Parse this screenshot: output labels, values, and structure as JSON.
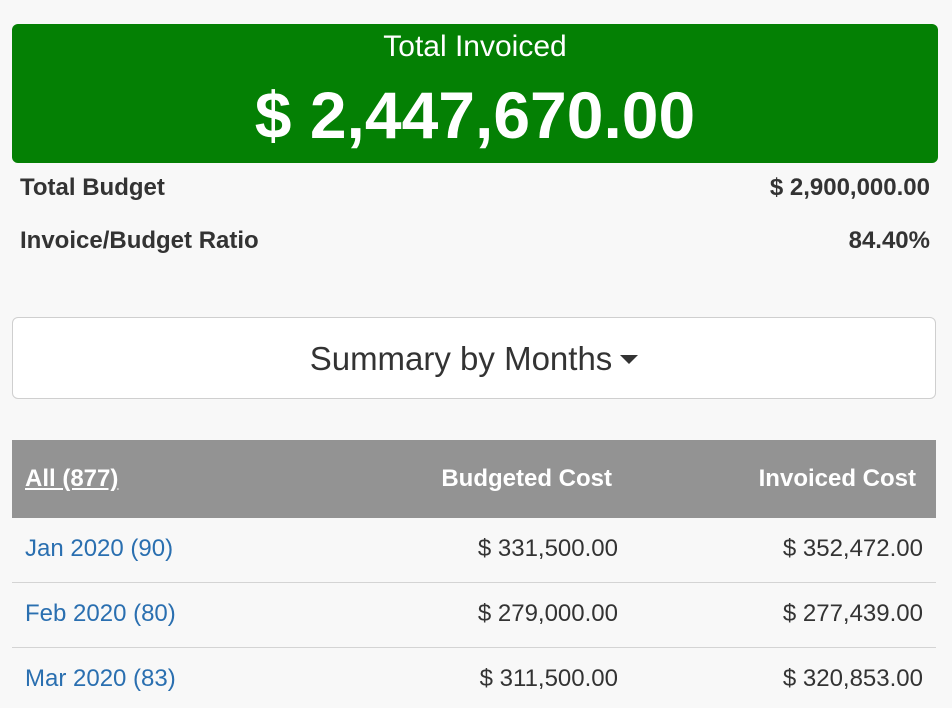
{
  "summary": {
    "total_invoiced_label": "Total Invoiced",
    "total_invoiced_value": "$ 2,447,670.00",
    "total_budget_label": "Total Budget",
    "total_budget_value": "$ 2,900,000.00",
    "ratio_label": "Invoice/Budget Ratio",
    "ratio_value": "84.40%",
    "banner_color": "#048004"
  },
  "summary_dropdown": {
    "label": "Summary by Months",
    "icon": "caret-down-icon"
  },
  "table": {
    "headers": {
      "all_link": "All (877)",
      "budgeted": "Budgeted Cost",
      "invoiced": "Invoiced Cost"
    },
    "rows": [
      {
        "month": "Jan 2020 (90)",
        "budgeted": "$ 331,500.00",
        "invoiced": "$ 352,472.00"
      },
      {
        "month": "Feb 2020 (80)",
        "budgeted": "$ 279,000.00",
        "invoiced": "$ 277,439.00"
      },
      {
        "month": "Mar 2020 (83)",
        "budgeted": "$ 311,500.00",
        "invoiced": "$ 320,853.00"
      }
    ],
    "header_color": "#939393",
    "link_color": "#2a6fb0"
  }
}
